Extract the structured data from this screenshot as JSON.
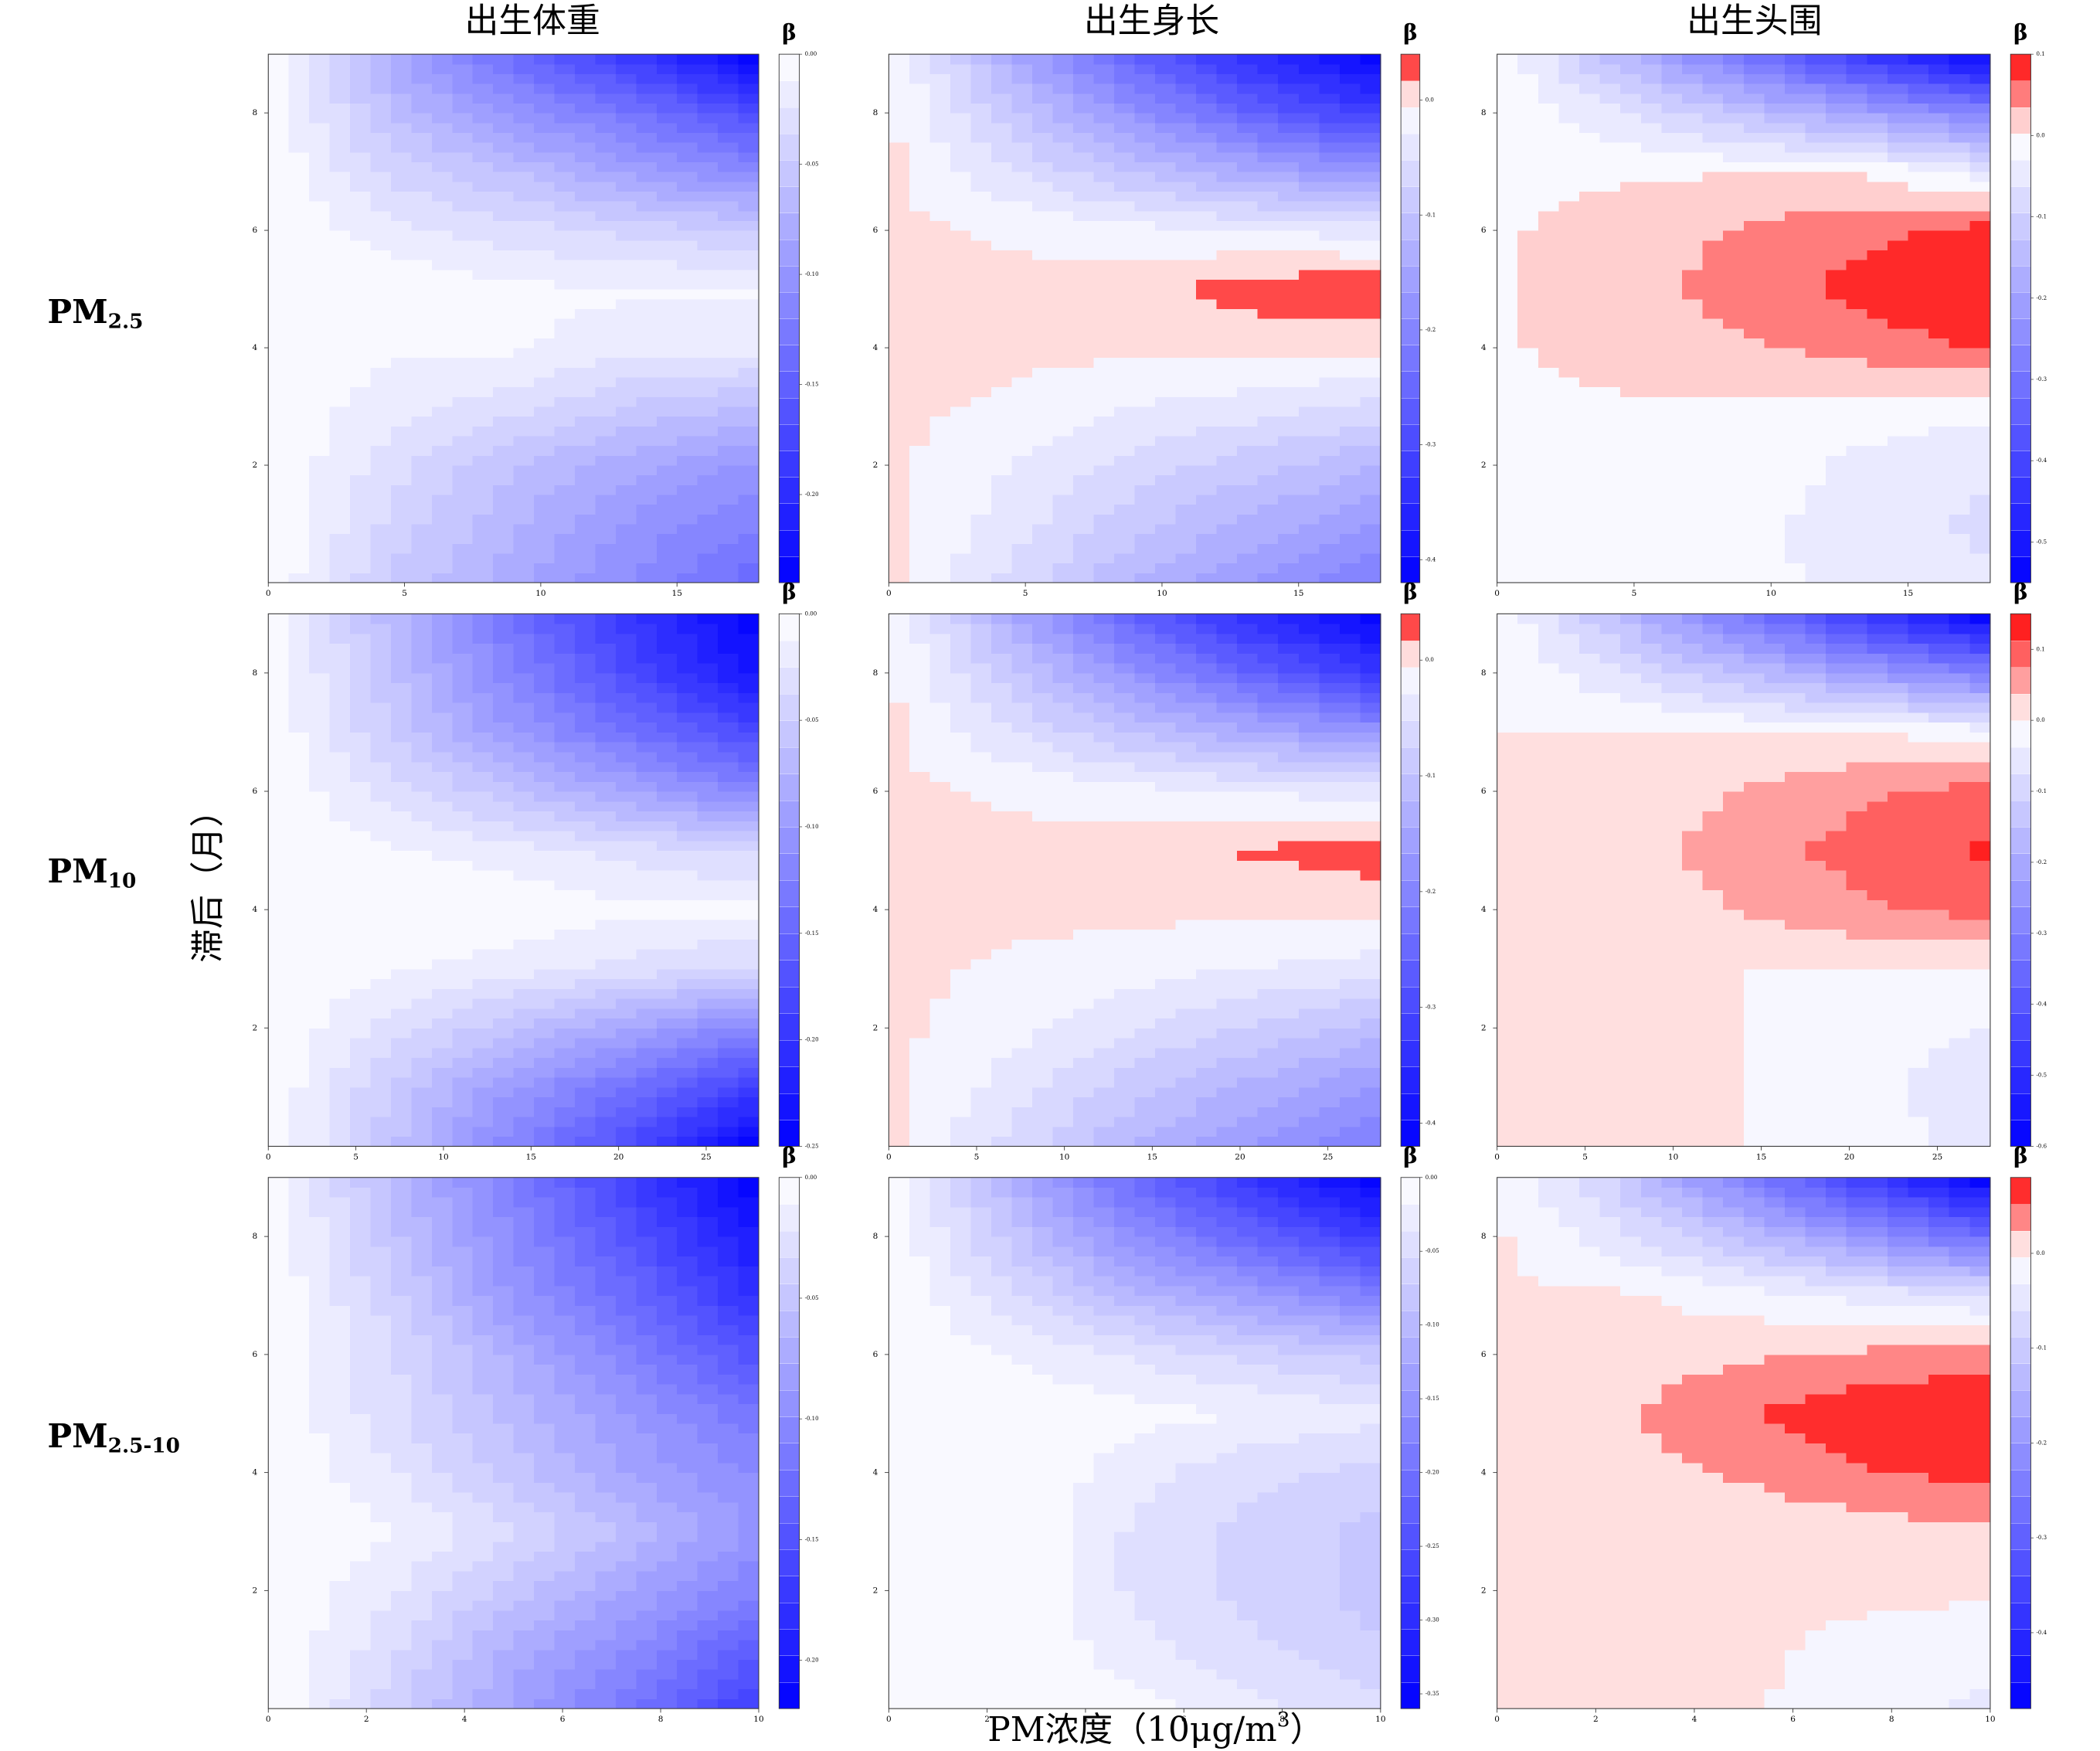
{
  "figure": {
    "xlabel": {
      "main": "PM浓度（10μg/m",
      "sup": "3",
      "end": "）"
    },
    "ylabel": "滞后（月）",
    "row_labels": [
      {
        "main": "PM",
        "sub": "2.5"
      },
      {
        "main": "PM",
        "sub": "10"
      },
      {
        "main": "PM",
        "sub": "2.5-10"
      }
    ]
  },
  "chart_data": [
    {
      "type": "contour",
      "title": "出生体重",
      "colorbar_label": "β",
      "x": [
        0,
        4.5,
        9,
        13.5,
        18
      ],
      "y": [
        0,
        1,
        2,
        3,
        4,
        5,
        6,
        7,
        8,
        9
      ],
      "z": [
        [
          0,
          -0.05,
          -0.08,
          -0.11,
          -0.14
        ],
        [
          0,
          -0.04,
          -0.07,
          -0.1,
          -0.12
        ],
        [
          0,
          -0.03,
          -0.06,
          -0.08,
          -0.1
        ],
        [
          0,
          -0.02,
          -0.03,
          -0.05,
          -0.06
        ],
        [
          0,
          -0.01,
          -0.01,
          -0.02,
          -0.02
        ],
        [
          0,
          0,
          -0.01,
          -0.01,
          -0.01
        ],
        [
          0,
          -0.02,
          -0.03,
          -0.04,
          -0.05
        ],
        [
          0,
          -0.04,
          -0.06,
          -0.09,
          -0.11
        ],
        [
          0,
          -0.06,
          -0.1,
          -0.13,
          -0.17
        ],
        [
          0,
          -0.08,
          -0.14,
          -0.19,
          -0.24
        ]
      ],
      "xlim": [
        0,
        18
      ],
      "ylim": [
        0,
        9
      ],
      "xticks": [
        0,
        5,
        10,
        15
      ],
      "yticks": [
        2,
        4,
        6,
        8
      ],
      "zlim": [
        -0.24,
        0
      ],
      "zticks": [
        {
          "value": 0,
          "label": "0.00"
        },
        -0.05,
        {
          "value": -0.1,
          "label": "-0.10"
        },
        -0.15,
        {
          "value": -0.2,
          "label": "-0.20"
        }
      ],
      "colors": {
        "negative": "#0000ff",
        "zero": "#ffffff",
        "positive": "#ff0000"
      }
    },
    {
      "type": "contour",
      "title": "出生身长",
      "colorbar_label": "β",
      "x": [
        0,
        4.5,
        9,
        13.5,
        18
      ],
      "y": [
        0,
        1,
        2,
        3,
        4,
        5,
        6,
        7,
        8,
        9
      ],
      "z": [
        [
          0,
          -0.06,
          -0.12,
          -0.17,
          -0.22
        ],
        [
          0,
          -0.04,
          -0.09,
          -0.13,
          -0.17
        ],
        [
          0,
          -0.03,
          -0.06,
          -0.09,
          -0.12
        ],
        [
          0,
          -0.01,
          -0.03,
          -0.04,
          -0.06
        ],
        [
          0,
          0,
          0,
          0,
          0
        ],
        [
          0,
          0,
          0.01,
          0.03,
          0.04
        ],
        [
          0,
          -0.01,
          -0.02,
          -0.03,
          -0.04
        ],
        [
          0,
          -0.05,
          -0.1,
          -0.14,
          -0.18
        ],
        [
          0,
          -0.09,
          -0.18,
          -0.26,
          -0.32
        ],
        [
          0,
          -0.14,
          -0.26,
          -0.35,
          -0.42
        ]
      ],
      "xlim": [
        0,
        18
      ],
      "ylim": [
        0,
        9
      ],
      "xticks": [
        0,
        5,
        10,
        15
      ],
      "yticks": [
        2,
        4,
        6,
        8
      ],
      "zlim": [
        -0.42,
        0.04
      ],
      "zticks": [
        {
          "value": 0,
          "label": "0.0"
        },
        -0.1,
        -0.2,
        -0.3,
        -0.4
      ],
      "colors": {
        "negative": "#0000ff",
        "zero": "#ffffff",
        "positive": "#ff0000"
      }
    },
    {
      "type": "contour",
      "title": "出生头围",
      "colorbar_label": "β",
      "x": [
        0,
        4.5,
        9,
        13.5,
        18
      ],
      "y": [
        0,
        1,
        2,
        3,
        4,
        5,
        6,
        7,
        8,
        9
      ],
      "z": [
        [
          0,
          0,
          -0.02,
          -0.04,
          -0.06
        ],
        [
          0,
          0,
          -0.02,
          -0.05,
          -0.07
        ],
        [
          0,
          0,
          -0.01,
          -0.04,
          -0.06
        ],
        [
          0,
          0,
          0,
          -0.01,
          -0.02
        ],
        [
          0,
          0.01,
          0.03,
          0.05,
          0.07
        ],
        [
          0,
          0.02,
          0.05,
          0.08,
          0.1
        ],
        [
          0,
          0.01,
          0.04,
          0.06,
          0.08
        ],
        [
          0,
          0,
          0,
          0,
          -0.05
        ],
        [
          0,
          -0.06,
          -0.13,
          -0.2,
          -0.27
        ],
        [
          0,
          -0.15,
          -0.3,
          -0.43,
          -0.55
        ]
      ],
      "xlim": [
        0,
        18
      ],
      "ylim": [
        0,
        9
      ],
      "xticks": [
        0,
        5,
        10,
        15
      ],
      "yticks": [
        2,
        4,
        6,
        8
      ],
      "zlim": [
        -0.55,
        0.1
      ],
      "zticks": [
        0.1,
        {
          "value": 0,
          "label": "0.0"
        },
        -0.1,
        -0.2,
        -0.3,
        -0.4,
        -0.5
      ],
      "colors": {
        "negative": "#0000ff",
        "zero": "#ffffff",
        "positive": "#ff0000"
      }
    },
    {
      "type": "contour",
      "colorbar_label": "β",
      "x": [
        0,
        7,
        14,
        21,
        28
      ],
      "y": [
        0,
        1,
        2,
        3,
        4,
        5,
        6,
        7,
        8,
        9
      ],
      "z": [
        [
          0,
          -0.06,
          -0.12,
          -0.18,
          -0.25
        ],
        [
          0,
          -0.05,
          -0.1,
          -0.14,
          -0.19
        ],
        [
          0,
          -0.03,
          -0.06,
          -0.09,
          -0.12
        ],
        [
          0,
          -0.01,
          -0.02,
          -0.03,
          -0.04
        ],
        [
          0,
          0,
          0,
          -0.01,
          -0.01
        ],
        [
          0,
          -0.01,
          -0.02,
          -0.03,
          -0.04
        ],
        [
          0,
          -0.03,
          -0.06,
          -0.09,
          -0.12
        ],
        [
          0,
          -0.05,
          -0.1,
          -0.14,
          -0.18
        ],
        [
          0,
          -0.06,
          -0.12,
          -0.18,
          -0.23
        ],
        [
          0,
          -0.07,
          -0.14,
          -0.2,
          -0.25
        ]
      ],
      "xlim": [
        0,
        28
      ],
      "ylim": [
        0,
        9
      ],
      "xticks": [
        0,
        5,
        10,
        15,
        20,
        25
      ],
      "yticks": [
        2,
        4,
        6,
        8
      ],
      "zlim": [
        -0.25,
        0
      ],
      "zticks": [
        {
          "value": 0,
          "label": "0.00"
        },
        -0.05,
        {
          "value": -0.1,
          "label": "-0.10"
        },
        -0.15,
        {
          "value": -0.2,
          "label": "-0.20"
        },
        -0.25
      ],
      "colors": {
        "negative": "#0000ff",
        "zero": "#ffffff",
        "positive": "#ff0000"
      }
    },
    {
      "type": "contour",
      "colorbar_label": "β",
      "x": [
        0,
        7,
        14,
        21,
        28
      ],
      "y": [
        0,
        1,
        2,
        3,
        4,
        5,
        6,
        7,
        8,
        9
      ],
      "z": [
        [
          0,
          -0.06,
          -0.12,
          -0.17,
          -0.22
        ],
        [
          0,
          -0.04,
          -0.09,
          -0.13,
          -0.17
        ],
        [
          0,
          -0.02,
          -0.05,
          -0.08,
          -0.11
        ],
        [
          0,
          -0.01,
          -0.02,
          -0.03,
          -0.04
        ],
        [
          0,
          0,
          0,
          0,
          0
        ],
        [
          0,
          0,
          0.01,
          0.02,
          0.03
        ],
        [
          0,
          -0.01,
          -0.02,
          -0.03,
          -0.04
        ],
        [
          0,
          -0.05,
          -0.1,
          -0.14,
          -0.18
        ],
        [
          0,
          -0.09,
          -0.18,
          -0.26,
          -0.33
        ],
        [
          0,
          -0.14,
          -0.26,
          -0.35,
          -0.42
        ]
      ],
      "xlim": [
        0,
        28
      ],
      "ylim": [
        0,
        9
      ],
      "xticks": [
        0,
        5,
        10,
        15,
        20,
        25
      ],
      "yticks": [
        2,
        4,
        6,
        8
      ],
      "zlim": [
        -0.42,
        0.04
      ],
      "zticks": [
        {
          "value": 0,
          "label": "0.0"
        },
        -0.1,
        -0.2,
        -0.3,
        -0.4
      ],
      "colors": {
        "negative": "#0000ff",
        "zero": "#ffffff",
        "positive": "#ff0000"
      }
    },
    {
      "type": "contour",
      "colorbar_label": "β",
      "x": [
        0,
        7,
        14,
        21,
        28
      ],
      "y": [
        0,
        1,
        2,
        3,
        4,
        5,
        6,
        7,
        8,
        9
      ],
      "z": [
        [
          0,
          0,
          0,
          -0.02,
          -0.05
        ],
        [
          0,
          0,
          0,
          -0.03,
          -0.06
        ],
        [
          0,
          0,
          0,
          -0.02,
          -0.04
        ],
        [
          0,
          0,
          0,
          0,
          0
        ],
        [
          0,
          0.01,
          0.04,
          0.07,
          0.09
        ],
        [
          0,
          0.02,
          0.06,
          0.09,
          0.12
        ],
        [
          0,
          0.01,
          0.04,
          0.07,
          0.09
        ],
        [
          0,
          0,
          0,
          0,
          -0.02
        ],
        [
          0,
          -0.07,
          -0.15,
          -0.23,
          -0.3
        ],
        [
          0,
          -0.16,
          -0.32,
          -0.47,
          -0.6
        ]
      ],
      "xlim": [
        0,
        28
      ],
      "ylim": [
        0,
        9
      ],
      "xticks": [
        0,
        5,
        10,
        15,
        20,
        25
      ],
      "yticks": [
        2,
        4,
        6,
        8
      ],
      "zlim": [
        -0.6,
        0.15
      ],
      "zticks": [
        0.1,
        {
          "value": 0,
          "label": "0.0"
        },
        -0.1,
        -0.2,
        -0.3,
        -0.4,
        -0.5,
        -0.6
      ],
      "colors": {
        "negative": "#0000ff",
        "zero": "#ffffff",
        "positive": "#ff0000"
      }
    },
    {
      "type": "contour",
      "colorbar_label": "β",
      "x": [
        0,
        2.5,
        5,
        7.5,
        10
      ],
      "y": [
        0,
        1,
        2,
        3,
        4,
        5,
        6,
        7,
        8,
        9
      ],
      "z": [
        [
          0,
          -0.04,
          -0.08,
          -0.12,
          -0.17
        ],
        [
          0,
          -0.03,
          -0.07,
          -0.1,
          -0.14
        ],
        [
          0,
          -0.02,
          -0.05,
          -0.08,
          -0.11
        ],
        [
          0,
          -0.01,
          -0.03,
          -0.06,
          -0.09
        ],
        [
          0,
          -0.02,
          -0.05,
          -0.08,
          -0.1
        ],
        [
          0,
          -0.03,
          -0.06,
          -0.09,
          -0.12
        ],
        [
          0,
          -0.03,
          -0.07,
          -0.11,
          -0.15
        ],
        [
          0,
          -0.04,
          -0.09,
          -0.13,
          -0.18
        ],
        [
          0,
          -0.05,
          -0.1,
          -0.15,
          -0.2
        ],
        [
          0,
          -0.06,
          -0.11,
          -0.17,
          -0.22
        ]
      ],
      "xlim": [
        0,
        10
      ],
      "ylim": [
        0,
        9
      ],
      "xticks": [
        0,
        2,
        4,
        6,
        8,
        10
      ],
      "yticks": [
        2,
        4,
        6,
        8
      ],
      "zlim": [
        -0.22,
        0
      ],
      "zticks": [
        {
          "value": 0,
          "label": "0.00"
        },
        -0.05,
        {
          "value": -0.1,
          "label": "-0.10"
        },
        -0.15,
        {
          "value": -0.2,
          "label": "-0.20"
        }
      ],
      "colors": {
        "negative": "#0000ff",
        "zero": "#ffffff",
        "positive": "#ff0000"
      }
    },
    {
      "type": "contour",
      "colorbar_label": "β",
      "x": [
        0,
        2.5,
        5,
        7.5,
        10
      ],
      "y": [
        0,
        1,
        2,
        3,
        4,
        5,
        6,
        7,
        8,
        9
      ],
      "z": [
        [
          0,
          0,
          -0.01,
          -0.03,
          -0.05
        ],
        [
          0,
          0,
          -0.03,
          -0.05,
          -0.07
        ],
        [
          0,
          0,
          -0.04,
          -0.06,
          -0.08
        ],
        [
          0,
          0,
          -0.04,
          -0.06,
          -0.08
        ],
        [
          0,
          0,
          -0.03,
          -0.05,
          -0.06
        ],
        [
          0,
          0,
          -0.01,
          -0.02,
          -0.03
        ],
        [
          0,
          -0.02,
          -0.04,
          -0.06,
          -0.08
        ],
        [
          0,
          -0.05,
          -0.1,
          -0.14,
          -0.18
        ],
        [
          0,
          -0.08,
          -0.16,
          -0.22,
          -0.28
        ],
        [
          0,
          -0.11,
          -0.21,
          -0.29,
          -0.36
        ]
      ],
      "xlim": [
        0,
        10
      ],
      "ylim": [
        0,
        9
      ],
      "xticks": [
        0,
        2,
        4,
        6,
        8,
        10
      ],
      "yticks": [
        2,
        4,
        6,
        8
      ],
      "zlim": [
        -0.36,
        0
      ],
      "zticks": [
        {
          "value": 0,
          "label": "0.00"
        },
        -0.05,
        {
          "value": -0.1,
          "label": "-0.10"
        },
        -0.15,
        {
          "value": -0.2,
          "label": "-0.20"
        },
        -0.25,
        {
          "value": -0.3,
          "label": "-0.30"
        },
        -0.35
      ],
      "colors": {
        "negative": "#0000ff",
        "zero": "#ffffff",
        "positive": "#ff0000"
      }
    },
    {
      "type": "contour",
      "colorbar_label": "β",
      "x": [
        0,
        2.5,
        5,
        7.5,
        10
      ],
      "y": [
        0,
        1,
        2,
        3,
        4,
        5,
        6,
        7,
        8,
        9
      ],
      "z": [
        [
          0,
          0,
          0,
          -0.02,
          -0.04
        ],
        [
          0,
          0,
          0,
          -0.01,
          -0.02
        ],
        [
          0,
          0,
          0,
          0,
          0
        ],
        [
          0,
          0,
          0,
          0.01,
          0.02
        ],
        [
          0,
          0.01,
          0.03,
          0.05,
          0.06
        ],
        [
          0,
          0.02,
          0.05,
          0.07,
          0.08
        ],
        [
          0,
          0.01,
          0.02,
          0.03,
          0.04
        ],
        [
          0,
          0,
          -0.02,
          -0.04,
          -0.06
        ],
        [
          0,
          -0.05,
          -0.12,
          -0.2,
          -0.28
        ],
        [
          0,
          -0.1,
          -0.24,
          -0.37,
          -0.48
        ]
      ],
      "xlim": [
        0,
        10
      ],
      "ylim": [
        0,
        9
      ],
      "xticks": [
        0,
        2,
        4,
        6,
        8,
        10
      ],
      "yticks": [
        2,
        4,
        6,
        8
      ],
      "zlim": [
        -0.48,
        0.08
      ],
      "zticks": [
        {
          "value": 0,
          "label": "0.0"
        },
        -0.1,
        -0.2,
        -0.3,
        -0.4
      ],
      "colors": {
        "negative": "#0000ff",
        "zero": "#ffffff",
        "positive": "#ff0000"
      }
    }
  ]
}
